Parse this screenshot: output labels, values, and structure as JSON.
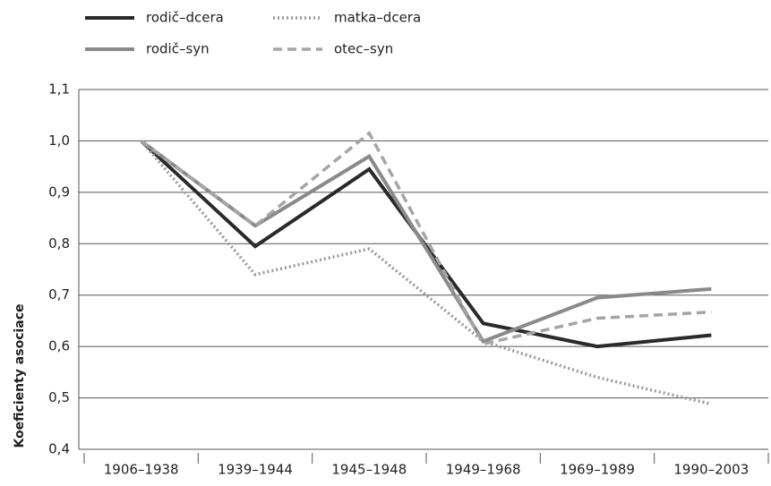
{
  "chart_data": {
    "type": "line",
    "y_label": "Koeficienty asociace",
    "categories": [
      "1906–1938",
      "1939–1944",
      "1945–1948",
      "1949–1968",
      "1969–1989",
      "1990–2003"
    ],
    "series": [
      {
        "name": "rodič–dcera",
        "color": "#2a2a2a",
        "style": "solid",
        "values": [
          1.0,
          0.795,
          0.945,
          0.645,
          0.6,
          0.622
        ]
      },
      {
        "name": "matka–dcera",
        "color": "#9a9a9a",
        "style": "dotted",
        "values": [
          1.0,
          0.74,
          0.79,
          0.61,
          0.54,
          0.488
        ]
      },
      {
        "name": "rodič–syn",
        "color": "#8a8a8a",
        "style": "solid",
        "values": [
          1.0,
          0.835,
          0.97,
          0.61,
          0.695,
          0.712
        ]
      },
      {
        "name": "otec–syn",
        "color": "#a5a5a5",
        "style": "dashed",
        "values": [
          1.0,
          0.835,
          1.015,
          0.605,
          0.655,
          0.667
        ]
      }
    ],
    "ylim": [
      0.4,
      1.1
    ],
    "yticks": [
      {
        "value": 0.4,
        "label": "0,4"
      },
      {
        "value": 0.5,
        "label": "0,5"
      },
      {
        "value": 0.6,
        "label": "0,6"
      },
      {
        "value": 0.7,
        "label": "0,7"
      },
      {
        "value": 0.8,
        "label": "0,8"
      },
      {
        "value": 0.9,
        "label": "0,9"
      },
      {
        "value": 1.0,
        "label": "1,0"
      },
      {
        "value": 1.1,
        "label": "1,1"
      }
    ],
    "grid": true
  }
}
